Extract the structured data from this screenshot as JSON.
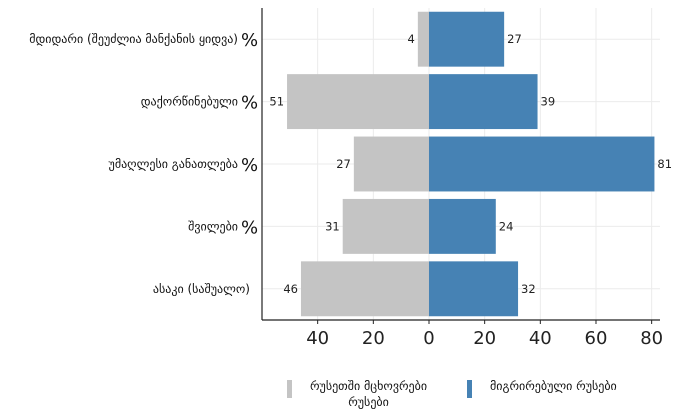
{
  "chart_data": {
    "type": "bar",
    "orientation": "horizontal-diverging",
    "categories": [
      "მდიდარი (შეუძლია მანქანის ყიდვა)",
      "დაქორწინებული",
      "უმაღლესი განათლება",
      "შვილები",
      "ასაკი (საშუალო)"
    ],
    "category_suffixes": [
      "%",
      "%",
      "%",
      "%",
      ""
    ],
    "series": [
      {
        "name": "რუსეთში მცხოვრები რუსები",
        "values": [
          4,
          51,
          27,
          31,
          46
        ],
        "color": "#c4c4c4",
        "direction": "left"
      },
      {
        "name": "მიგრირებული რუსები",
        "values": [
          27,
          39,
          81,
          24,
          32
        ],
        "color": "#4682b4",
        "direction": "right"
      }
    ],
    "xlim": [
      -60,
      83
    ],
    "xticks": [
      -40,
      -20,
      0,
      20,
      40,
      60,
      80
    ],
    "xtick_labels": [
      "40",
      "20",
      "0",
      "20",
      "40",
      "60",
      "80"
    ],
    "grid": true,
    "legend_position": "bottom"
  },
  "legend": {
    "left_line1": "რუსეთში მცხოვრები",
    "left_line2": "რუსები",
    "right_label": "მიგრირებული რუსები"
  }
}
